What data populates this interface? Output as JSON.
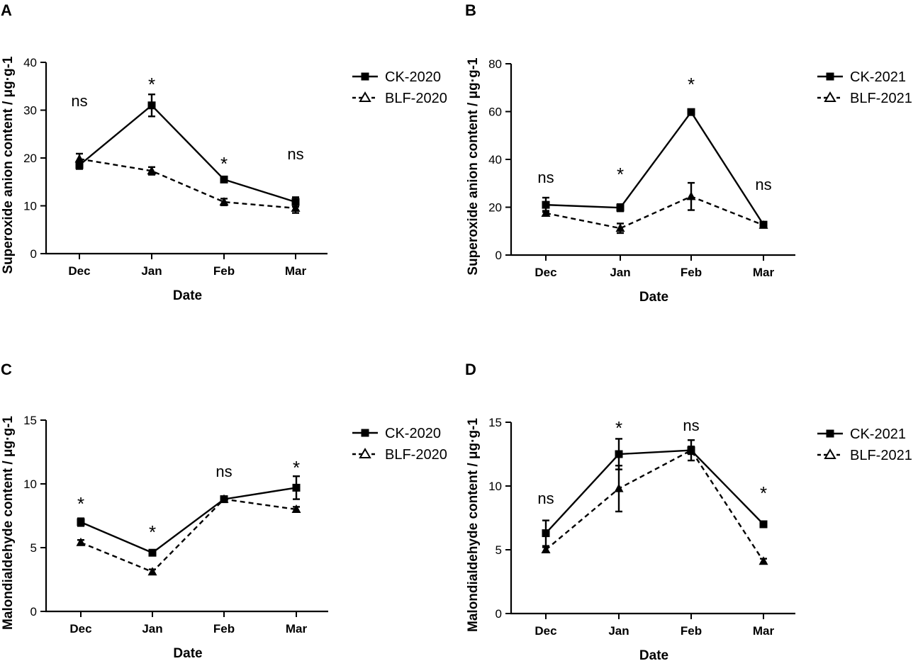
{
  "chart_data": [
    {
      "panel": "A",
      "type": "line",
      "categories": [
        "Dec",
        "Jan",
        "Feb",
        "Mar"
      ],
      "xlabel": "Date",
      "ylabel": "Superoxide anion content / μg·g-1",
      "ylim": [
        0,
        40
      ],
      "yticks": [
        "0",
        "10",
        "20",
        "30",
        "40"
      ],
      "series": [
        {
          "name": "CK-2020",
          "marker": "square",
          "line": "solid",
          "values": [
            18.5,
            31,
            15.5,
            10.8
          ],
          "err": [
            0.8,
            2.3,
            0.5,
            1.0
          ]
        },
        {
          "name": "BLF-2020",
          "marker": "triangle",
          "line": "dashed",
          "values": [
            19.8,
            17.3,
            10.8,
            9.5
          ],
          "err": [
            1.1,
            0.8,
            0.7,
            1.0
          ]
        }
      ],
      "annotations": [
        "ns",
        "*",
        "*",
        "ns"
      ]
    },
    {
      "panel": "B",
      "type": "line",
      "categories": [
        "Dec",
        "Jan",
        "Feb",
        "Mar"
      ],
      "xlabel": "Date",
      "ylabel": "Superoxide anion content / μg·g-1",
      "ylim": [
        0,
        80
      ],
      "yticks": [
        "0",
        "20",
        "40",
        "60",
        "80"
      ],
      "series": [
        {
          "name": "CK-2021",
          "marker": "square",
          "line": "solid",
          "values": [
            21,
            19.8,
            59.8,
            12.7
          ],
          "err": [
            3.0,
            1.5,
            1.0,
            0.5
          ]
        },
        {
          "name": "BLF-2021",
          "marker": "triangle",
          "line": "dashed",
          "values": [
            17.5,
            11.2,
            24.5,
            12.5
          ],
          "err": [
            1.0,
            2.0,
            5.7,
            0.8
          ]
        }
      ],
      "annotations": [
        "ns",
        "*",
        "*",
        "ns"
      ]
    },
    {
      "panel": "C",
      "type": "line",
      "categories": [
        "Dec",
        "Jan",
        "Feb",
        "Mar"
      ],
      "xlabel": "Date",
      "ylabel": "Malondialdehyde content / μg·g-1",
      "ylim": [
        0,
        15
      ],
      "yticks": [
        "0",
        "5",
        "10",
        "15"
      ],
      "series": [
        {
          "name": "CK-2020",
          "marker": "square",
          "line": "solid",
          "values": [
            7.0,
            4.6,
            8.8,
            9.7
          ],
          "err": [
            0.3,
            0.2,
            0.2,
            0.9
          ]
        },
        {
          "name": "BLF-2020",
          "marker": "triangle",
          "line": "dashed",
          "values": [
            5.4,
            3.1,
            8.8,
            8.0
          ],
          "err": [
            0.2,
            0.2,
            0.2,
            0.2
          ]
        }
      ],
      "annotations": [
        "*",
        "*",
        "ns",
        "*"
      ]
    },
    {
      "panel": "D",
      "type": "line",
      "categories": [
        "Dec",
        "Jan",
        "Feb",
        "Mar"
      ],
      "xlabel": "Date",
      "ylabel": "Malondialdehyde content / μg·g-1",
      "ylim": [
        0,
        15
      ],
      "yticks": [
        "0",
        "5",
        "10",
        "15"
      ],
      "series": [
        {
          "name": "CK-2021",
          "marker": "square",
          "line": "solid",
          "values": [
            6.3,
            12.5,
            12.8,
            7.0
          ],
          "err": [
            1.0,
            1.2,
            0.8,
            0.2
          ]
        },
        {
          "name": "BLF-2021",
          "marker": "triangle",
          "line": "dashed",
          "values": [
            5.0,
            9.8,
            12.8,
            4.1
          ],
          "err": [
            0.2,
            1.8,
            0.3,
            0.2
          ]
        }
      ],
      "annotations": [
        "ns",
        "*",
        "ns",
        "*"
      ]
    }
  ]
}
